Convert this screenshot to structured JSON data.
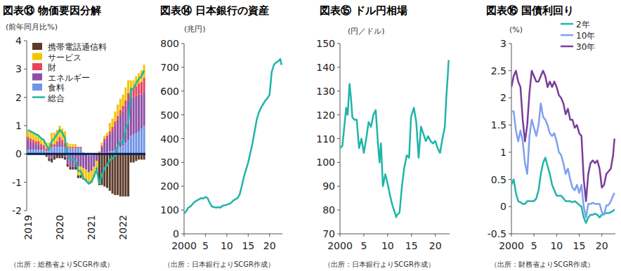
{
  "chart_data": [
    {
      "type": "bar",
      "title": "図表⑬ 物価要因分解",
      "y_label": "(前年同月比%)",
      "source": "（出所：総務省よりSCGR作成）",
      "stacked": true,
      "grid": false,
      "legend": "upper left",
      "ylim": [
        -2,
        4
      ],
      "yticks": [
        -2,
        -1,
        0,
        1,
        2,
        3,
        4
      ],
      "categories": [
        "2019",
        null,
        null,
        null,
        null,
        null,
        null,
        null,
        null,
        null,
        null,
        null,
        "2020",
        null,
        null,
        null,
        null,
        null,
        null,
        null,
        null,
        null,
        null,
        null,
        "2021",
        null,
        null,
        null,
        null,
        null,
        null,
        null,
        null,
        null,
        null,
        null,
        "2022",
        null,
        null,
        null,
        null,
        null,
        null,
        null,
        null
      ],
      "series": [
        {
          "name": "携帯電話通信料",
          "color": "#5b3a29",
          "values": [
            0,
            0,
            0,
            0,
            0,
            0,
            0,
            -0.05,
            -0.1,
            -0.15,
            -0.15,
            -0.15,
            -0.15,
            -0.15,
            -0.1,
            -0.1,
            -0.1,
            -0.1,
            -0.1,
            -0.1,
            -0.1,
            -0.05,
            -0.05,
            -0.05,
            -0.05,
            -0.05,
            -0.05,
            -1.1,
            -1.1,
            -1.15,
            -1.2,
            -1.3,
            -1.4,
            -1.45,
            -1.45,
            -1.5,
            -1.5,
            -1.5,
            -1.5,
            -0.3,
            -0.3,
            -0.25,
            -0.2,
            -0.2,
            -0.2
          ]
        },
        {
          "name": "サービス",
          "color": "#f5c400",
          "values": [
            0.25,
            0.25,
            0.25,
            0.25,
            0.2,
            0.2,
            0.2,
            0.2,
            0.2,
            0.4,
            0.4,
            0.4,
            0.4,
            0.4,
            0.4,
            0.15,
            0.1,
            0.1,
            0.1,
            -0.3,
            -0.3,
            -0.35,
            -0.35,
            -0.35,
            -0.35,
            -0.3,
            -0.25,
            0.05,
            0.1,
            0.1,
            0.1,
            0.3,
            0.3,
            0.35,
            0.4,
            0.4,
            0.4,
            0.45,
            0.45,
            0.3,
            0.3,
            0.35,
            0.35,
            0.4,
            0.45
          ]
        },
        {
          "name": "財",
          "color": "#e8435a",
          "values": [
            0.1,
            0.1,
            0.1,
            0.1,
            0.1,
            0.1,
            0.1,
            0.1,
            0.1,
            0.1,
            0.1,
            0.1,
            0.15,
            0.15,
            0.15,
            0.05,
            0.05,
            0.05,
            0.05,
            0.05,
            0.05,
            0,
            0,
            0,
            0,
            0,
            0,
            0.05,
            0.05,
            0.1,
            0.1,
            0.1,
            0.15,
            0.15,
            0.15,
            0.2,
            0.2,
            0.2,
            0.25,
            0.3,
            0.3,
            0.35,
            0.4,
            0.45,
            0.5
          ]
        },
        {
          "name": "エネルギー",
          "color": "#8e4fa5",
          "values": [
            0.35,
            0.3,
            0.25,
            0.2,
            0.2,
            0.1,
            0.05,
            -0.05,
            -0.15,
            -0.15,
            -0.05,
            0.1,
            0.2,
            0.1,
            -0.1,
            -0.35,
            -0.45,
            -0.45,
            -0.45,
            -0.45,
            -0.45,
            -0.5,
            -0.55,
            -0.6,
            -0.55,
            -0.45,
            -0.25,
            0,
            0.2,
            0.4,
            0.5,
            0.6,
            0.7,
            0.85,
            1.0,
            1.1,
            1.2,
            1.3,
            1.4,
            1.35,
            1.3,
            1.3,
            1.3,
            1.2,
            1.2
          ]
        },
        {
          "name": "食料",
          "color": "#6f95e6",
          "values": [
            0.15,
            0.15,
            0.15,
            0.15,
            0.15,
            0.15,
            0.15,
            0.1,
            0.1,
            0.25,
            0.25,
            0.25,
            0.25,
            0.25,
            0.25,
            0.2,
            0.2,
            0.2,
            0.2,
            0.2,
            0.2,
            0.05,
            0,
            -0.05,
            -0.05,
            0,
            0,
            0,
            0.05,
            0.05,
            0.05,
            0.1,
            0.1,
            0.15,
            0.2,
            0.25,
            0.3,
            0.4,
            0.5,
            0.65,
            0.7,
            0.75,
            0.8,
            0.9,
            1.0
          ]
        },
        {
          "name": "総合",
          "color": "#1fb5a8",
          "type": "line",
          "values": [
            0.85,
            0.8,
            0.75,
            0.7,
            0.65,
            0.55,
            0.5,
            0.3,
            0.15,
            0.45,
            0.55,
            0.7,
            0.85,
            0.75,
            0.55,
            -0.05,
            -0.2,
            -0.2,
            -0.2,
            -0.6,
            -0.6,
            -0.85,
            -0.95,
            -1.05,
            -1.0,
            -0.8,
            -0.55,
            -1.05,
            -0.75,
            -0.5,
            -0.4,
            -0.2,
            -0.15,
            -0.05,
            0.3,
            0.45,
            0.4,
            0.85,
            1.1,
            2.3,
            2.3,
            2.5,
            2.65,
            2.75,
            2.95
          ]
        }
      ]
    },
    {
      "type": "line",
      "title": "図表⑭ 日本銀行の資産",
      "y_label": "(兆円)",
      "source": "（出所：日本銀行よりSCGR作成）",
      "grid": false,
      "xlim": [
        2000,
        2023
      ],
      "xticks": [
        2000,
        {
          "value": 2005,
          "label": "5"
        },
        {
          "value": 2010,
          "label": "10"
        },
        {
          "value": 2015,
          "label": "15"
        },
        {
          "value": 2020,
          "label": "20"
        }
      ],
      "ylim": [
        0,
        800
      ],
      "yticks": [
        0,
        100,
        200,
        300,
        400,
        500,
        600,
        700,
        800
      ],
      "x": [
        2000,
        2000.5,
        2001,
        2001.5,
        2002,
        2002.5,
        2003,
        2003.5,
        2004,
        2004.5,
        2005,
        2005.5,
        2006,
        2006.5,
        2007,
        2007.5,
        2008,
        2008.5,
        2009,
        2009.5,
        2010,
        2010.5,
        2011,
        2011.5,
        2012,
        2012.5,
        2013,
        2013.5,
        2014,
        2014.5,
        2015,
        2015.5,
        2016,
        2016.5,
        2017,
        2017.5,
        2018,
        2018.5,
        2019,
        2019.5,
        2020,
        2020.5,
        2021,
        2021.5,
        2022,
        2022.5,
        2022.8
      ],
      "series": [
        {
          "color": "#1fb5a8",
          "values": [
            85,
            95,
            110,
            115,
            125,
            135,
            140,
            145,
            150,
            148,
            155,
            150,
            130,
            115,
            112,
            110,
            112,
            110,
            118,
            120,
            122,
            125,
            130,
            140,
            145,
            150,
            165,
            200,
            240,
            270,
            300,
            340,
            380,
            430,
            480,
            510,
            530,
            545,
            560,
            570,
            585,
            680,
            710,
            720,
            725,
            735,
            710
          ]
        }
      ]
    },
    {
      "type": "line",
      "title": "図表⑮ ドル円相場",
      "y_label": "(円／ドル)",
      "source": "（出所：日本銀行よりSCGR作成）",
      "grid": false,
      "xlim": [
        2000,
        2023
      ],
      "xticks": [
        2000,
        {
          "value": 2005,
          "label": "5"
        },
        {
          "value": 2010,
          "label": "10"
        },
        {
          "value": 2015,
          "label": "15"
        },
        {
          "value": 2020,
          "label": "20"
        }
      ],
      "ylim": [
        70,
        150
      ],
      "yticks": [
        70,
        80,
        90,
        100,
        110,
        120,
        130,
        140,
        150
      ],
      "x": [
        2000,
        2000.5,
        2001,
        2001.3,
        2001.6,
        2002,
        2002.3,
        2002.6,
        2003,
        2003.5,
        2004,
        2004.5,
        2005,
        2005.5,
        2006,
        2006.5,
        2007,
        2007.5,
        2008,
        2008.3,
        2008.6,
        2009,
        2009.5,
        2010,
        2010.5,
        2011,
        2011.5,
        2011.8,
        2012,
        2012.5,
        2013,
        2013.5,
        2014,
        2014.5,
        2014.9,
        2015.5,
        2016,
        2016.5,
        2017,
        2017.5,
        2018,
        2018.5,
        2019,
        2019.5,
        2020,
        2020.5,
        2021,
        2021.5,
        2022,
        2022.3,
        2022.6,
        2022.8
      ],
      "series": [
        {
          "color": "#1fb5a8",
          "values": [
            106,
            107,
            117,
            123,
            120,
            133,
            127,
            119,
            118,
            118,
            106,
            110,
            104,
            110,
            117,
            115,
            120,
            122,
            107,
            100,
            108,
            90,
            95,
            91,
            86,
            82,
            79,
            77,
            78,
            79,
            90,
            98,
            103,
            102,
            119,
            123,
            117,
            102,
            115,
            112,
            109,
            111,
            109,
            108,
            109,
            106,
            104,
            110,
            115,
            127,
            136,
            143
          ]
        }
      ]
    },
    {
      "type": "line",
      "title": "図表⑯ 国債利回り",
      "y_label": "(%)",
      "source": "（出所：財務省よりSCGR作成）",
      "grid": false,
      "legend": "upper right",
      "xlim": [
        2000,
        2023
      ],
      "xticks": [
        2000,
        {
          "value": 2005,
          "label": "5"
        },
        {
          "value": 2010,
          "label": "10"
        },
        {
          "value": 2015,
          "label": "15"
        },
        {
          "value": 2020,
          "label": "20"
        }
      ],
      "ylim": [
        -0.5,
        3
      ],
      "yticks": [
        -0.5,
        0,
        0.5,
        1,
        1.5,
        2,
        2.5,
        3
      ],
      "x": [
        2000,
        2000.5,
        2001,
        2001.5,
        2002,
        2002.5,
        2003,
        2003.5,
        2004,
        2004.5,
        2005,
        2005.5,
        2006,
        2006.5,
        2007,
        2007.5,
        2008,
        2008.5,
        2009,
        2009.5,
        2010,
        2010.5,
        2011,
        2011.5,
        2012,
        2012.5,
        2013,
        2013.5,
        2014,
        2014.5,
        2015,
        2015.5,
        2016,
        2016.5,
        2017,
        2017.5,
        2018,
        2018.5,
        2019,
        2019.5,
        2020,
        2020.5,
        2021,
        2021.5,
        2022,
        2022.5,
        2022.8
      ],
      "series": [
        {
          "name": "2年",
          "color": "#1fb5a8",
          "values": [
            0.4,
            0.5,
            0.25,
            0.1,
            0.08,
            0.05,
            0.05,
            0.1,
            0.1,
            0.1,
            0.1,
            0.15,
            0.3,
            0.6,
            0.8,
            0.9,
            0.75,
            0.6,
            0.4,
            0.3,
            0.2,
            0.2,
            0.2,
            0.15,
            0.1,
            0.1,
            0.1,
            0.08,
            0.1,
            0.07,
            0.03,
            0,
            -0.2,
            -0.3,
            -0.2,
            -0.15,
            -0.15,
            -0.13,
            -0.15,
            -0.2,
            -0.15,
            -0.13,
            -0.12,
            -0.12,
            -0.1,
            -0.08,
            -0.05
          ]
        },
        {
          "name": "10年",
          "color": "#7f9ff0",
          "values": [
            1.75,
            1.75,
            1.4,
            1.2,
            1.4,
            1.2,
            0.8,
            0.6,
            1.3,
            1.6,
            1.45,
            1.3,
            1.5,
            1.9,
            1.65,
            1.6,
            1.5,
            1.35,
            1.3,
            1.35,
            1.2,
            1.0,
            0.95,
            0.8,
            0.6,
            0.7,
            0.5,
            0.35,
            0.3,
            0.4,
            0.25,
            0.4,
            0,
            -0.2,
            0.05,
            0.05,
            0.07,
            0.05,
            0.05,
            0.05,
            -0.1,
            -0.15,
            0.02,
            0.03,
            0.1,
            0.2,
            0.25
          ]
        },
        {
          "name": "30年",
          "color": "#7a3d9a",
          "values": [
            2.2,
            2.4,
            2.5,
            2.3,
            2.2,
            1.6,
            1.2,
            1.5,
            2.1,
            2.5,
            2.4,
            2.3,
            2.3,
            2.4,
            2.5,
            2.4,
            2.2,
            2.3,
            2.2,
            2.3,
            2.2,
            2.05,
            2.0,
            1.9,
            1.7,
            1.8,
            1.6,
            1.6,
            1.45,
            1.5,
            1.35,
            1.3,
            0.5,
            0.1,
            0.6,
            0.8,
            0.85,
            0.8,
            0.85,
            0.7,
            0.35,
            0.4,
            0.6,
            0.65,
            0.7,
            0.95,
            1.25
          ]
        }
      ]
    }
  ]
}
